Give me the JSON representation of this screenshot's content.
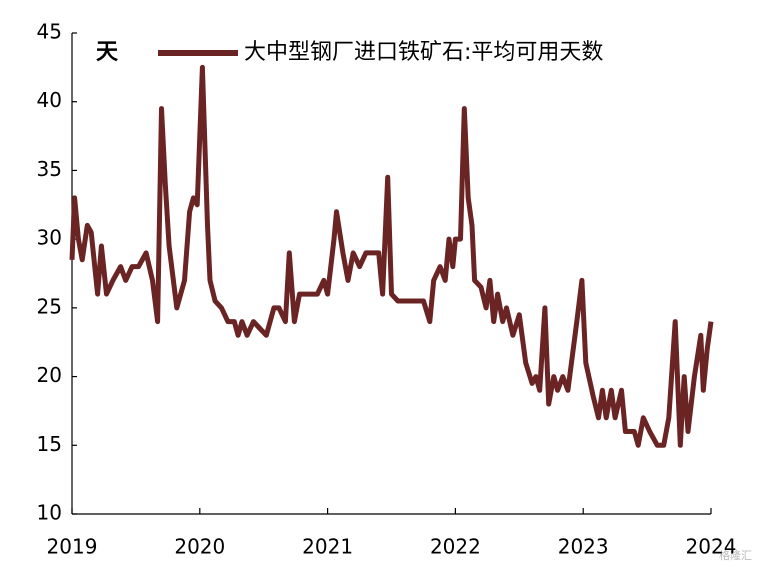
{
  "chart_data": {
    "type": "line",
    "ylabel": "天",
    "watermark": "格隆汇",
    "x": [
      2019.0,
      2019.02,
      2019.05,
      2019.08,
      2019.12,
      2019.15,
      2019.2,
      2019.23,
      2019.27,
      2019.32,
      2019.38,
      2019.42,
      2019.47,
      2019.52,
      2019.58,
      2019.63,
      2019.67,
      2019.7,
      2019.73,
      2019.76,
      2019.82,
      2019.88,
      2019.92,
      2019.95,
      2019.98,
      2020.02,
      2020.06,
      2020.08,
      2020.12,
      2020.17,
      2020.22,
      2020.27,
      2020.3,
      2020.33,
      2020.37,
      2020.42,
      2020.47,
      2020.52,
      2020.58,
      2020.62,
      2020.67,
      2020.7,
      2020.74,
      2020.78,
      2020.85,
      2020.92,
      2020.97,
      2021.0,
      2021.05,
      2021.07,
      2021.12,
      2021.16,
      2021.2,
      2021.25,
      2021.3,
      2021.35,
      2021.4,
      2021.43,
      2021.47,
      2021.5,
      2021.55,
      2021.65,
      2021.75,
      2021.8,
      2021.83,
      2021.88,
      2021.92,
      2021.95,
      2021.98,
      2022.0,
      2022.04,
      2022.07,
      2022.1,
      2022.13,
      2022.15,
      2022.2,
      2022.24,
      2022.27,
      2022.3,
      2022.33,
      2022.37,
      2022.4,
      2022.45,
      2022.5,
      2022.55,
      2022.6,
      2022.63,
      2022.66,
      2022.7,
      2022.73,
      2022.77,
      2022.8,
      2022.84,
      2022.88,
      2022.95,
      2022.99,
      2023.02,
      2023.08,
      2023.12,
      2023.15,
      2023.18,
      2023.22,
      2023.25,
      2023.3,
      2023.33,
      2023.4,
      2023.43,
      2023.47,
      2023.52,
      2023.58,
      2023.63,
      2023.67,
      2023.72,
      2023.76,
      2023.79,
      2023.82,
      2023.87,
      2023.92,
      2023.94,
      2023.97,
      2024.0
    ],
    "series": [
      {
        "name": "大中型钢厂进口铁矿石:平均可用天数",
        "color": "#6b2424",
        "values": [
          28.5,
          33,
          30,
          28.5,
          31,
          30.5,
          26,
          29.5,
          26,
          27,
          28,
          27,
          28,
          28,
          29,
          27,
          24,
          39.5,
          34,
          29.5,
          25,
          27,
          32,
          33,
          32.5,
          42.5,
          31,
          27,
          25.5,
          25,
          24,
          24,
          23,
          24,
          23,
          24,
          23.5,
          23,
          25,
          25,
          24,
          29,
          24,
          26,
          26,
          26,
          27,
          26,
          30,
          32,
          29,
          27,
          29,
          28,
          29,
          29,
          29,
          26,
          34.5,
          26,
          25.5,
          25.5,
          25.5,
          24,
          27,
          28,
          27,
          30,
          28,
          30,
          30,
          39.5,
          33,
          31,
          27,
          26.5,
          25,
          27,
          24,
          26,
          24,
          25,
          23,
          24.5,
          21,
          19.5,
          20,
          19,
          25,
          18,
          20,
          19,
          20,
          19,
          24,
          27,
          21,
          18.5,
          17,
          19,
          17,
          19,
          17,
          19,
          16,
          16,
          15,
          17,
          16,
          15,
          15,
          17,
          24,
          15,
          20,
          16,
          20,
          23,
          19,
          22,
          24
        ]
      }
    ],
    "xlim": [
      2019,
      2024
    ],
    "xticks": [
      2019,
      2020,
      2021,
      2022,
      2023,
      2024
    ],
    "ylim": [
      10,
      45
    ],
    "yticks": [
      10,
      15,
      20,
      25,
      30,
      35,
      40,
      45
    ],
    "grid": false
  }
}
